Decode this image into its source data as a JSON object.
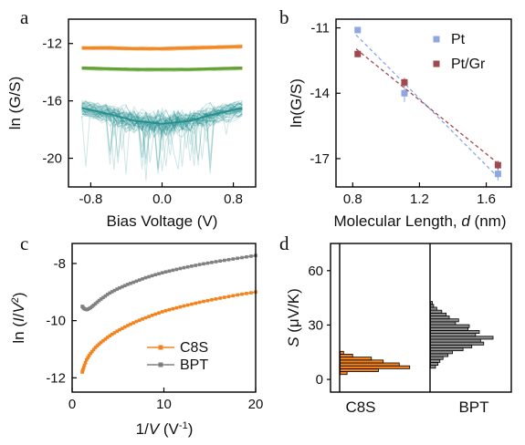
{
  "figure": {
    "panels": [
      "a",
      "b",
      "c",
      "d"
    ]
  },
  "chart_data": [
    {
      "panel": "a",
      "type": "line",
      "xlabel": "Bias Voltage (V)",
      "ylabel": "ln (G/S)",
      "xlim": [
        -1.05,
        1.05
      ],
      "ylim": [
        -22,
        -10.3
      ],
      "xticks": [
        -0.8,
        0.0,
        0.8
      ],
      "xtick_labels": [
        "-0.8",
        "0.0",
        "0.8"
      ],
      "yticks": [
        -12,
        -16,
        -20
      ],
      "ytick_labels": [
        "-12",
        "-16",
        "-20"
      ],
      "x_range": [
        -0.9,
        0.9
      ],
      "series": [
        {
          "color": "#f2841e",
          "values_mean": [
            -12.3,
            -12.3,
            -12.35,
            -12.35,
            -12.3,
            -12.25,
            -12.2
          ],
          "x": [
            -0.9,
            -0.6,
            -0.3,
            0.0,
            0.3,
            0.6,
            0.9
          ]
        },
        {
          "color": "#5e9e2f",
          "values_mean": [
            -13.7,
            -13.75,
            -13.8,
            -13.8,
            -13.8,
            -13.75,
            -13.7
          ],
          "x": [
            -0.9,
            -0.6,
            -0.3,
            0.0,
            0.3,
            0.6,
            0.9
          ]
        },
        {
          "color": "#1f8b8b",
          "values_mean": [
            -16.5,
            -16.9,
            -17.4,
            -17.6,
            -17.4,
            -16.9,
            -16.5
          ],
          "x": [
            -0.9,
            -0.6,
            -0.3,
            0.0,
            0.3,
            0.6,
            0.9
          ]
        }
      ]
    },
    {
      "panel": "b",
      "type": "scatter",
      "xlabel": "Molecular Length, d (nm)",
      "xlabel_parts": [
        "Molecular Length, ",
        "d",
        " (nm)"
      ],
      "ylabel": "ln(G/S)",
      "xlim": [
        0.7,
        1.75
      ],
      "ylim": [
        -18.3,
        -10.6
      ],
      "xticks": [
        0.8,
        1.2,
        1.6
      ],
      "xtick_labels": [
        "0.8",
        "1.2",
        "1.6"
      ],
      "yticks": [
        -11,
        -14,
        -17
      ],
      "ytick_labels": [
        "-11",
        "-14",
        "-17"
      ],
      "legend_position": "top-right",
      "series": [
        {
          "name": "Pt",
          "color": "#8ea6e4",
          "x": [
            0.83,
            1.11,
            1.67
          ],
          "y": [
            -11.1,
            -14.0,
            -17.7
          ],
          "err": [
            0.1,
            0.4,
            0.3
          ]
        },
        {
          "name": "Pt/Gr",
          "color": "#a0484c",
          "x": [
            0.83,
            1.11,
            1.67
          ],
          "y": [
            -12.2,
            -13.5,
            -17.3
          ],
          "err": [
            0.1,
            0.2,
            0.2
          ]
        }
      ]
    },
    {
      "panel": "c",
      "type": "line",
      "xlabel": "1/V (V-1)",
      "xlabel_parts": [
        "1/",
        "V",
        " (V",
        "-1",
        ")"
      ],
      "ylabel": "ln (I/V2)",
      "ylabel_parts": [
        "ln (",
        "I",
        "/",
        "V",
        "2",
        ")"
      ],
      "xlim": [
        0,
        20
      ],
      "ylim": [
        -12.5,
        -7.3
      ],
      "xticks": [
        0,
        10,
        20
      ],
      "xtick_labels": [
        "0",
        "10",
        "20"
      ],
      "yticks": [
        -8,
        -10,
        -12
      ],
      "ytick_labels": [
        "-8",
        "-10",
        "-12"
      ],
      "legend_position": "bottom-center",
      "series": [
        {
          "name": "C8S",
          "color": "#f2841e",
          "x": [
            1.1,
            1.3,
            1.6,
            2.0,
            2.5,
            3,
            4,
            5,
            6,
            7,
            8,
            9,
            10,
            12,
            14,
            16,
            18,
            20
          ],
          "y": [
            -11.8,
            -11.6,
            -11.35,
            -11.15,
            -10.95,
            -10.8,
            -10.55,
            -10.35,
            -10.18,
            -10.03,
            -9.9,
            -9.78,
            -9.67,
            -9.5,
            -9.35,
            -9.22,
            -9.1,
            -9.0
          ]
        },
        {
          "name": "BPT",
          "color": "#808080",
          "x": [
            1.1,
            1.3,
            1.6,
            2.0,
            2.5,
            3,
            4,
            5,
            6,
            7,
            8,
            9,
            10,
            12,
            14,
            16,
            18,
            20
          ],
          "y": [
            -9.5,
            -9.58,
            -9.62,
            -9.55,
            -9.42,
            -9.28,
            -9.05,
            -8.88,
            -8.74,
            -8.62,
            -8.5,
            -8.4,
            -8.31,
            -8.16,
            -8.03,
            -7.92,
            -7.82,
            -7.72
          ]
        }
      ]
    },
    {
      "panel": "d",
      "type": "bar",
      "orientation": "horizontal-histogram",
      "xlabel_categories": [
        "C8S",
        "BPT"
      ],
      "ylabel": "S (μV/K)",
      "ylabel_parts": [
        "S",
        " (μV/K)"
      ],
      "ylim": [
        -7,
        75
      ],
      "yticks": [
        0,
        30,
        60
      ],
      "ytick_labels": [
        "0",
        "30",
        "60"
      ],
      "bin_width": 1.6,
      "series": [
        {
          "name": "C8S",
          "color": "#f2841e",
          "bin_centers": [
            3.5,
            5.1,
            6.7,
            8.3,
            9.9,
            11.5,
            13.1,
            14.7
          ],
          "counts": [
            0.1,
            0.55,
            1.0,
            0.85,
            0.62,
            0.45,
            0.18,
            0.05
          ]
        },
        {
          "name": "BPT",
          "color": "#8c8c8c",
          "bin_centers": [
            7,
            8.6,
            10.2,
            11.8,
            13.4,
            15,
            16.6,
            18.2,
            19.8,
            21.4,
            23,
            24.6,
            26.2,
            27.8,
            29.4,
            31,
            32.6,
            34.2,
            35.8,
            37.4,
            39,
            40.6,
            42.2
          ],
          "counts": [
            0.08,
            0.12,
            0.15,
            0.2,
            0.28,
            0.35,
            0.52,
            0.66,
            0.85,
            0.8,
            1.0,
            0.72,
            0.78,
            0.6,
            0.62,
            0.4,
            0.45,
            0.3,
            0.25,
            0.18,
            0.1,
            0.05,
            0.03
          ]
        }
      ]
    }
  ]
}
